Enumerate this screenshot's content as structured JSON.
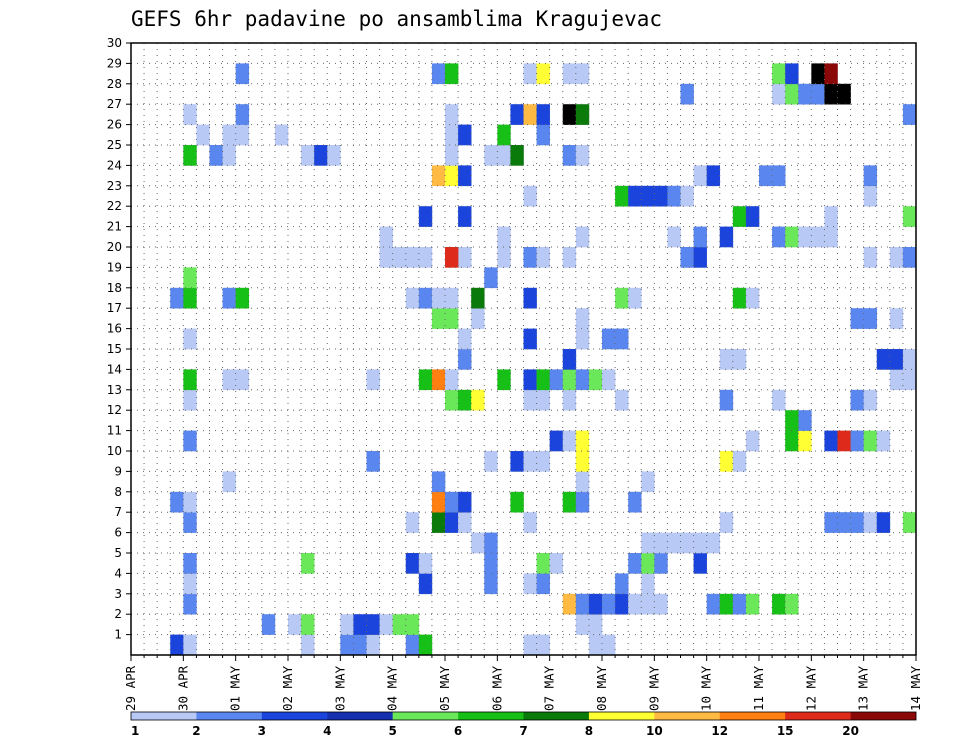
{
  "chart_data": {
    "type": "heatmap",
    "title": "GEFS 6hr padavine po ansamblima Kragujevac",
    "y_labels": [
      "1",
      "2",
      "3",
      "4",
      "5",
      "6",
      "7",
      "8",
      "9",
      "10",
      "11",
      "12",
      "13",
      "14",
      "15",
      "16",
      "17",
      "18",
      "19",
      "20",
      "21",
      "22",
      "23",
      "24",
      "25",
      "26",
      "27",
      "28",
      "29",
      "30"
    ],
    "ylim": [
      0,
      30
    ],
    "x_labels": [
      "29 APR",
      "30 APR",
      "01 MAY",
      "02 MAY",
      "03 MAY",
      "04 MAY",
      "05 MAY",
      "06 MAY",
      "07 MAY",
      "08 MAY",
      "09 MAY",
      "10 MAY",
      "11 MAY",
      "12 MAY",
      "13 MAY",
      "14 MAY"
    ],
    "x_steps_per_day": 4,
    "x_step_count": 60,
    "grid": true,
    "legend": {
      "placement": "bottom",
      "labels": [
        "1",
        "2",
        "3",
        "4",
        "5",
        "6",
        "7",
        "8",
        "10",
        "12",
        "15",
        "20"
      ],
      "colors": [
        "#b8c9f5",
        "#5a86f0",
        "#1a44dc",
        "#1430b0",
        "#6ae85a",
        "#16c016",
        "#0a7a0a",
        "#ffff33",
        "#ffba44",
        "#ff7f10",
        "#dd2a1a",
        "#8a0808"
      ]
    },
    "cells": [
      [
        4,
        1,
        3
      ],
      [
        5,
        1,
        1
      ],
      [
        14,
        1,
        1
      ],
      [
        17,
        1,
        2
      ],
      [
        18,
        1,
        2
      ],
      [
        19,
        1,
        1
      ],
      [
        22,
        1,
        2
      ],
      [
        23,
        1,
        6
      ],
      [
        31,
        1,
        1
      ],
      [
        32,
        1,
        1
      ],
      [
        36,
        1,
        1
      ],
      [
        37,
        1,
        1
      ],
      [
        11,
        2,
        2
      ],
      [
        13,
        2,
        1
      ],
      [
        14,
        2,
        5
      ],
      [
        17,
        2,
        1
      ],
      [
        18,
        2,
        3
      ],
      [
        19,
        2,
        3
      ],
      [
        20,
        2,
        1
      ],
      [
        21,
        2,
        5
      ],
      [
        22,
        2,
        5
      ],
      [
        35,
        2,
        1
      ],
      [
        36,
        2,
        1
      ],
      [
        5,
        3,
        2
      ],
      [
        34,
        3,
        9
      ],
      [
        35,
        3,
        2
      ],
      [
        36,
        3,
        3
      ],
      [
        37,
        3,
        2
      ],
      [
        38,
        3,
        3
      ],
      [
        39,
        3,
        1
      ],
      [
        40,
        3,
        1
      ],
      [
        41,
        3,
        1
      ],
      [
        45,
        3,
        2
      ],
      [
        46,
        3,
        6
      ],
      [
        47,
        3,
        2
      ],
      [
        48,
        3,
        5
      ],
      [
        50,
        3,
        6
      ],
      [
        51,
        3,
        5
      ],
      [
        5,
        4,
        1
      ],
      [
        23,
        4,
        3
      ],
      [
        28,
        4,
        2
      ],
      [
        31,
        4,
        1
      ],
      [
        32,
        4,
        2
      ],
      [
        38,
        4,
        2
      ],
      [
        40,
        4,
        1
      ],
      [
        5,
        5,
        2
      ],
      [
        14,
        5,
        5
      ],
      [
        22,
        5,
        3
      ],
      [
        23,
        5,
        1
      ],
      [
        28,
        5,
        2
      ],
      [
        32,
        5,
        5
      ],
      [
        33,
        5,
        1
      ],
      [
        39,
        5,
        2
      ],
      [
        40,
        5,
        5
      ],
      [
        41,
        5,
        2
      ],
      [
        44,
        5,
        3
      ],
      [
        27,
        6,
        1
      ],
      [
        28,
        6,
        2
      ],
      [
        40,
        6,
        1
      ],
      [
        41,
        6,
        1
      ],
      [
        42,
        6,
        1
      ],
      [
        43,
        6,
        1
      ],
      [
        44,
        6,
        1
      ],
      [
        45,
        6,
        1
      ],
      [
        5,
        7,
        2
      ],
      [
        22,
        7,
        1
      ],
      [
        24,
        7,
        7
      ],
      [
        25,
        7,
        3
      ],
      [
        26,
        7,
        1
      ],
      [
        31,
        7,
        1
      ],
      [
        46,
        7,
        1
      ],
      [
        54,
        7,
        2
      ],
      [
        55,
        7,
        2
      ],
      [
        56,
        7,
        2
      ],
      [
        57,
        7,
        1
      ],
      [
        58,
        7,
        3
      ],
      [
        60,
        7,
        5
      ],
      [
        4,
        8,
        2
      ],
      [
        5,
        8,
        1
      ],
      [
        24,
        8,
        10
      ],
      [
        25,
        8,
        2
      ],
      [
        26,
        8,
        3
      ],
      [
        30,
        8,
        6
      ],
      [
        34,
        8,
        6
      ],
      [
        35,
        8,
        2
      ],
      [
        39,
        8,
        2
      ],
      [
        8,
        9,
        1
      ],
      [
        24,
        9,
        2
      ],
      [
        35,
        9,
        1
      ],
      [
        40,
        9,
        1
      ],
      [
        19,
        10,
        2
      ],
      [
        28,
        10,
        1
      ],
      [
        30,
        10,
        3
      ],
      [
        31,
        10,
        1
      ],
      [
        32,
        10,
        1
      ],
      [
        35,
        10,
        8
      ],
      [
        46,
        10,
        8
      ],
      [
        47,
        10,
        1
      ],
      [
        5,
        11,
        2
      ],
      [
        33,
        11,
        3
      ],
      [
        34,
        11,
        1
      ],
      [
        35,
        11,
        8
      ],
      [
        48,
        11,
        1
      ],
      [
        51,
        11,
        6
      ],
      [
        52,
        11,
        8
      ],
      [
        54,
        11,
        3
      ],
      [
        55,
        11,
        11
      ],
      [
        56,
        11,
        2
      ],
      [
        57,
        11,
        5
      ],
      [
        58,
        11,
        1
      ],
      [
        52,
        12,
        2
      ],
      [
        25,
        13,
        2
      ],
      [
        51,
        12,
        6
      ],
      [
        5,
        13,
        1
      ],
      [
        25,
        13,
        5
      ],
      [
        26,
        13,
        6
      ],
      [
        27,
        13,
        8
      ],
      [
        31,
        13,
        1
      ],
      [
        32,
        13,
        1
      ],
      [
        34,
        13,
        1
      ],
      [
        38,
        13,
        1
      ],
      [
        46,
        13,
        2
      ],
      [
        50,
        13,
        1
      ],
      [
        56,
        13,
        2
      ],
      [
        57,
        13,
        1
      ],
      [
        5,
        14,
        6
      ],
      [
        8,
        14,
        1
      ],
      [
        9,
        14,
        1
      ],
      [
        19,
        14,
        1
      ],
      [
        23,
        14,
        6
      ],
      [
        24,
        14,
        10
      ],
      [
        25,
        14,
        1
      ],
      [
        29,
        14,
        6
      ],
      [
        31,
        14,
        3
      ],
      [
        32,
        14,
        6
      ],
      [
        33,
        14,
        2
      ],
      [
        34,
        14,
        5
      ],
      [
        35,
        14,
        2
      ],
      [
        36,
        14,
        5
      ],
      [
        37,
        14,
        1
      ],
      [
        59,
        14,
        1
      ],
      [
        60,
        14,
        1
      ],
      [
        26,
        15,
        2
      ],
      [
        34,
        15,
        3
      ],
      [
        46,
        15,
        1
      ],
      [
        47,
        15,
        1
      ],
      [
        58,
        15,
        3
      ],
      [
        59,
        15,
        3
      ],
      [
        60,
        15,
        1
      ],
      [
        5,
        16,
        1
      ],
      [
        26,
        16,
        1
      ],
      [
        31,
        16,
        3
      ],
      [
        35,
        16,
        1
      ],
      [
        37,
        16,
        2
      ],
      [
        38,
        16,
        2
      ],
      [
        24,
        17,
        5
      ],
      [
        25,
        17,
        5
      ],
      [
        27,
        17,
        1
      ],
      [
        35,
        17,
        1
      ],
      [
        56,
        17,
        2
      ],
      [
        57,
        17,
        2
      ],
      [
        59,
        17,
        1
      ],
      [
        4,
        18,
        2
      ],
      [
        5,
        18,
        6
      ],
      [
        8,
        18,
        2
      ],
      [
        9,
        18,
        6
      ],
      [
        22,
        18,
        1
      ],
      [
        23,
        18,
        2
      ],
      [
        24,
        18,
        1
      ],
      [
        25,
        18,
        1
      ],
      [
        27,
        18,
        7
      ],
      [
        31,
        18,
        3
      ],
      [
        38,
        18,
        5
      ],
      [
        39,
        18,
        1
      ],
      [
        47,
        18,
        6
      ],
      [
        48,
        18,
        1
      ],
      [
        5,
        19,
        5
      ],
      [
        28,
        19,
        2
      ],
      [
        22,
        20,
        1
      ],
      [
        23,
        20,
        1
      ],
      [
        26,
        20,
        1
      ],
      [
        29,
        20,
        1
      ],
      [
        20,
        20,
        1
      ],
      [
        21,
        20,
        1
      ],
      [
        25,
        20,
        11
      ],
      [
        31,
        20,
        2
      ],
      [
        32,
        20,
        1
      ],
      [
        34,
        20,
        1
      ],
      [
        43,
        20,
        2
      ],
      [
        44,
        20,
        3
      ],
      [
        57,
        20,
        1
      ],
      [
        59,
        20,
        1
      ],
      [
        60,
        20,
        2
      ],
      [
        20,
        21,
        1
      ],
      [
        29,
        21,
        1
      ],
      [
        35,
        21,
        1
      ],
      [
        42,
        21,
        1
      ],
      [
        44,
        21,
        2
      ],
      [
        46,
        21,
        3
      ],
      [
        50,
        21,
        2
      ],
      [
        51,
        21,
        5
      ],
      [
        52,
        21,
        1
      ],
      [
        53,
        21,
        1
      ],
      [
        54,
        21,
        1
      ],
      [
        23,
        22,
        3
      ],
      [
        26,
        22,
        3
      ],
      [
        47,
        22,
        6
      ],
      [
        48,
        22,
        3
      ],
      [
        54,
        22,
        1
      ],
      [
        60,
        22,
        5
      ],
      [
        31,
        23,
        1
      ],
      [
        38,
        23,
        6
      ],
      [
        39,
        23,
        3
      ],
      [
        40,
        23,
        3
      ],
      [
        41,
        23,
        3
      ],
      [
        42,
        23,
        2
      ],
      [
        43,
        23,
        1
      ],
      [
        57,
        23,
        1
      ],
      [
        24,
        24,
        9
      ],
      [
        25,
        24,
        8
      ],
      [
        26,
        24,
        3
      ],
      [
        44,
        24,
        1
      ],
      [
        45,
        24,
        3
      ],
      [
        49,
        24,
        2
      ],
      [
        50,
        24,
        2
      ],
      [
        57,
        24,
        2
      ],
      [
        5,
        25,
        1
      ],
      [
        7,
        25,
        1
      ],
      [
        7,
        25,
        2
      ],
      [
        14,
        25,
        1
      ],
      [
        15,
        25,
        3
      ],
      [
        16,
        25,
        1
      ],
      [
        25,
        25,
        1
      ],
      [
        28,
        25,
        1
      ],
      [
        29,
        25,
        1
      ],
      [
        30,
        25,
        7
      ],
      [
        34,
        25,
        2
      ],
      [
        35,
        25,
        1
      ],
      [
        5,
        25,
        6
      ],
      [
        8,
        25,
        1
      ],
      [
        6,
        26,
        1
      ],
      [
        8,
        26,
        1
      ],
      [
        9,
        26,
        1
      ],
      [
        12,
        26,
        1
      ],
      [
        25,
        26,
        1
      ],
      [
        26,
        26,
        3
      ],
      [
        29,
        26,
        6
      ],
      [
        32,
        26,
        2
      ],
      [
        5,
        27,
        1
      ],
      [
        9,
        27,
        2
      ],
      [
        25,
        27,
        1
      ],
      [
        30,
        27,
        3
      ],
      [
        31,
        27,
        9
      ],
      [
        32,
        27,
        3
      ],
      [
        34,
        27,
        13
      ],
      [
        35,
        27,
        7
      ],
      [
        60,
        27,
        2
      ],
      [
        43,
        28,
        2
      ],
      [
        50,
        28,
        1
      ],
      [
        51,
        28,
        5
      ],
      [
        52,
        28,
        2
      ],
      [
        53,
        28,
        2
      ],
      [
        54,
        28,
        20
      ],
      [
        55,
        28,
        15
      ],
      [
        9,
        29,
        2
      ],
      [
        24,
        29,
        2
      ],
      [
        25,
        29,
        6
      ],
      [
        31,
        29,
        1
      ],
      [
        32,
        29,
        8
      ],
      [
        34,
        29,
        1
      ],
      [
        35,
        29,
        1
      ],
      [
        50,
        29,
        5
      ],
      [
        51,
        29,
        3
      ],
      [
        53,
        29,
        15
      ],
      [
        54,
        29,
        12
      ]
    ]
  }
}
